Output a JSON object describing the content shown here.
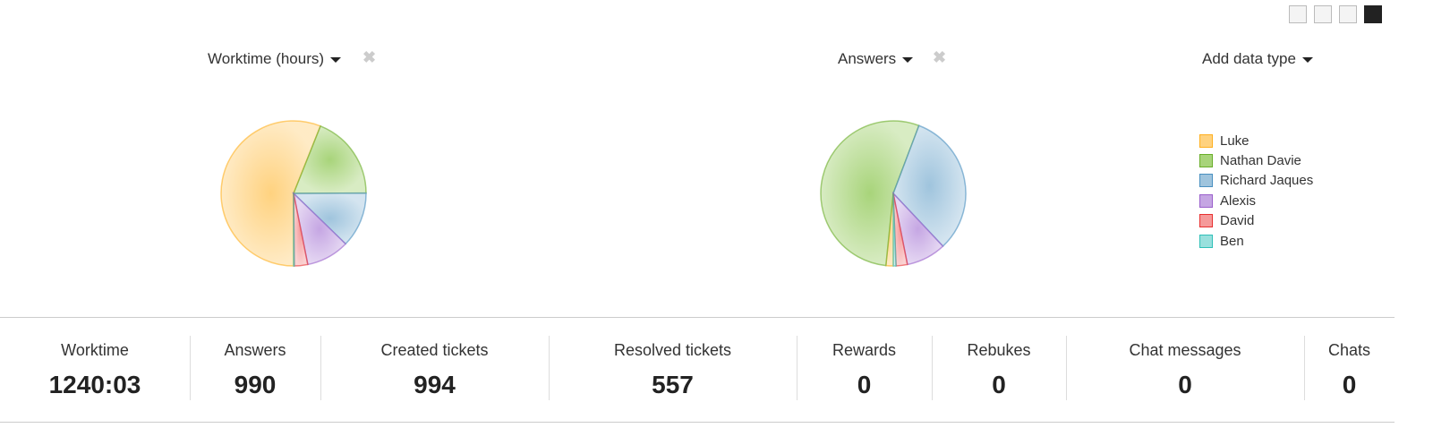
{
  "toolbar": {
    "icons": [
      "area-chart-icon",
      "line-chart-icon",
      "bar-chart-icon",
      "pie-chart-icon"
    ],
    "active": "pie-chart-icon"
  },
  "selectors": {
    "chart1": "Worktime (hours)",
    "chart2": "Answers",
    "add": "Add data type"
  },
  "colors": {
    "Luke": "#ffd27f",
    "Nathan Davie": "#a8d47a",
    "Richard Jaques": "#9fc4dd",
    "Alexis": "#c5a6e3",
    "David": "#f59a9a",
    "Ben": "#99e0dd"
  },
  "strokes": {
    "Luke": "#ffb020",
    "Nathan Davie": "#6aae2a",
    "Richard Jaques": "#4a90c0",
    "Alexis": "#9a60cc",
    "David": "#e83030",
    "Ben": "#30c0b8"
  },
  "chart_data": [
    {
      "type": "pie",
      "title": "Worktime (hours)",
      "categories": [
        "Luke",
        "Nathan Davie",
        "Richard Jaques",
        "Alexis",
        "David",
        "Ben"
      ],
      "values": [
        695,
        234,
        153,
        119,
        37,
        2
      ]
    },
    {
      "type": "pie",
      "title": "Answers",
      "categories": [
        "Luke",
        "Nathan Davie",
        "Richard Jaques",
        "Alexis",
        "David",
        "Ben"
      ],
      "values": [
        16,
        536,
        319,
        88,
        25,
        6
      ]
    }
  ],
  "legend": [
    "Luke",
    "Nathan Davie",
    "Richard Jaques",
    "Alexis",
    "David",
    "Ben"
  ],
  "stats": [
    {
      "label": "Worktime",
      "value": "1240:03"
    },
    {
      "label": "Answers",
      "value": "990"
    },
    {
      "label": "Created tickets",
      "value": "994"
    },
    {
      "label": "Resolved tickets",
      "value": "557"
    },
    {
      "label": "Rewards",
      "value": "0"
    },
    {
      "label": "Rebukes",
      "value": "0"
    },
    {
      "label": "Chat messages",
      "value": "0"
    },
    {
      "label": "Chats",
      "value": "0"
    }
  ]
}
